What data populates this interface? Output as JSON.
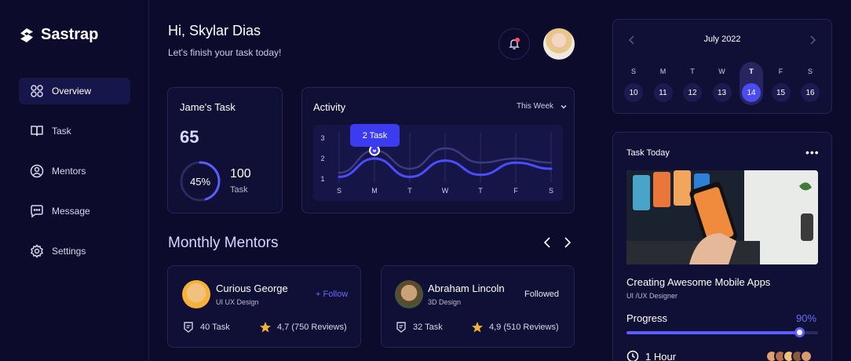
{
  "brand": {
    "name": "Sastrap"
  },
  "sidebar": {
    "items": [
      {
        "label": "Overview",
        "icon": "grid-icon",
        "active": true
      },
      {
        "label": "Task",
        "icon": "book-icon"
      },
      {
        "label": "Mentors",
        "icon": "user-circle-icon"
      },
      {
        "label": "Message",
        "icon": "chat-icon"
      },
      {
        "label": "Settings",
        "icon": "gear-icon"
      }
    ]
  },
  "header": {
    "greeting": "Hi, Skylar Dias",
    "subtitle": "Let's finish your task today!"
  },
  "task_card": {
    "title": "Jame's Task",
    "count": "65",
    "percent": "45%",
    "percent_value": 0.45,
    "total": "100",
    "total_label": "Task"
  },
  "activity": {
    "title": "Activity",
    "range": "This Week",
    "tooltip": "2 Task",
    "highlight_day": "M"
  },
  "chart_data": {
    "type": "line",
    "categories": [
      "S",
      "M",
      "T",
      "W",
      "T",
      "F",
      "S"
    ],
    "yticks": [
      "1",
      "2",
      "3"
    ],
    "ylim": [
      1,
      3
    ],
    "series": [
      {
        "values": [
          1.1,
          2.0,
          1.1,
          1.9,
          1.2,
          1.8,
          1.5
        ]
      },
      {
        "values": [
          1.3,
          2.4,
          1.5,
          2.5,
          1.8,
          2.0,
          1.8
        ]
      }
    ],
    "colors": [
      "#4b4dff",
      "#3a3a85"
    ]
  },
  "mentors": {
    "title": "Monthly Mentors",
    "list": [
      {
        "name": "Curious George",
        "role": "UI UX Design",
        "action": "+ Follow",
        "tasks": "40 Task",
        "rating": "4,7 (750 Reviews)"
      },
      {
        "name": "Abraham Lincoln",
        "role": "3D Design",
        "action": "Followed",
        "tasks": "32 Task",
        "rating": "4,9 (510 Reviews)"
      }
    ]
  },
  "calendar": {
    "month": "July 2022",
    "days": [
      "S",
      "M",
      "T",
      "W",
      "T",
      "F",
      "S"
    ],
    "dates": [
      "10",
      "11",
      "12",
      "13",
      "14",
      "15",
      "16"
    ],
    "selected": "14"
  },
  "task_today": {
    "title": "Task Today",
    "name": "Creating Awesome Mobile Apps",
    "role": "UI /UX Designer",
    "progress_label": "Progress",
    "progress_text": "90%",
    "progress": 0.9,
    "duration": "1 Hour"
  },
  "colors": {
    "accent": "#4b4dff",
    "background": "#0c0b2b",
    "card": "#100f35",
    "star": "#f6b13a"
  }
}
